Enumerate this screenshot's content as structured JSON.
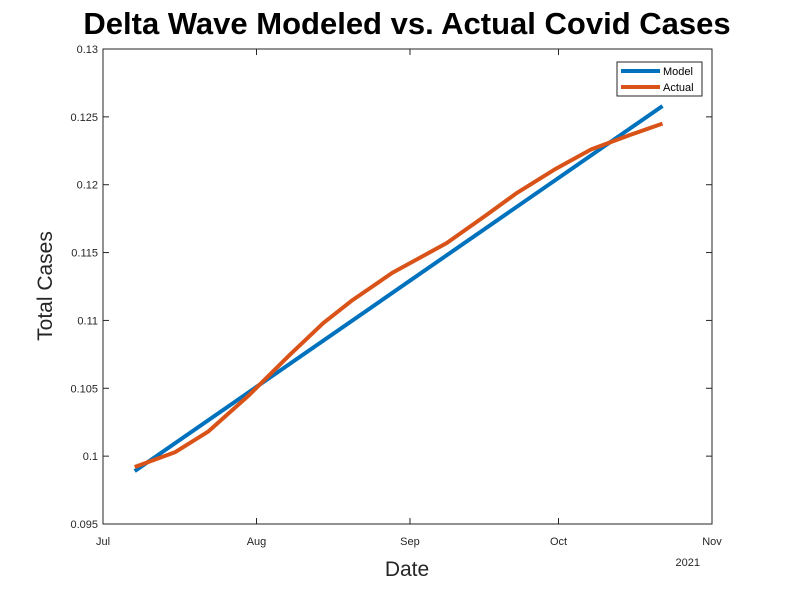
{
  "chart_data": {
    "type": "line",
    "title": "Delta Wave Modeled vs. Actual Covid Cases",
    "xlabel": "Date",
    "ylabel": "Total Cases",
    "x_ticks": [
      "Jul",
      "Aug",
      "Sep",
      "Oct",
      "Nov"
    ],
    "x_tick_days": [
      0,
      31,
      62,
      92,
      123
    ],
    "year_label": "2021",
    "xlim_days": [
      0,
      123
    ],
    "ylim": [
      0.095,
      0.13
    ],
    "y_ticks": [
      "0.095",
      "0.1",
      "0.105",
      "0.11",
      "0.115",
      "0.12",
      "0.125",
      "0.13"
    ],
    "y_tick_values": [
      0.095,
      0.1,
      0.105,
      0.11,
      0.115,
      0.12,
      0.125,
      0.13
    ],
    "legend_position": "top-right",
    "grid": false,
    "series": [
      {
        "name": "Model",
        "color": "#0072BD",
        "x_days": [
          6.4,
          113
        ],
        "values": [
          0.0989,
          0.1258
        ]
      },
      {
        "name": "Actual",
        "color": "#D95319",
        "x_days": [
          6.4,
          14.6,
          21.2,
          29.5,
          37.8,
          44.5,
          50.4,
          58.4,
          69.4,
          77.2,
          83.6,
          91.1,
          98.6,
          106.7,
          113
        ],
        "values": [
          0.0992,
          0.1003,
          0.1018,
          0.1045,
          0.1075,
          0.1098,
          0.1115,
          0.1135,
          0.1157,
          0.1177,
          0.1194,
          0.1211,
          0.1226,
          0.1237,
          0.1245
        ]
      }
    ]
  }
}
